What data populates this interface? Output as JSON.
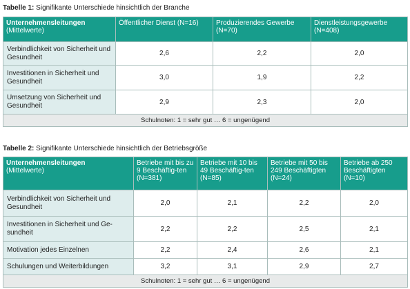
{
  "table1": {
    "caption_prefix": "Tabelle 1:",
    "caption_text": "Signifikante Unterschiede hinsichtlich der Branche",
    "header_first_bold": "Unternehmensleitungen",
    "header_first_sub": "(Mittelwerte)",
    "columns": [
      "Öffentlicher Dienst (N=16)",
      "Produzierendes Gewerbe (N=70)",
      "Dienstleistungsgewerbe (N=408)"
    ],
    "rows": [
      {
        "label": "Verbindlichkeit von Sicherheit und Gesundheit",
        "values": [
          "2,6",
          "2,2",
          "2,0"
        ]
      },
      {
        "label": "Investitionen in Sicherheit und Gesundheit",
        "values": [
          "3,0",
          "1,9",
          "2,2"
        ]
      },
      {
        "label": "Umsetzung von Sicherheit und Gesundheit",
        "values": [
          "2,9",
          "2,3",
          "2,0"
        ]
      }
    ],
    "note": "Schulnoten: 1 = sehr gut … 6 = ungenügend"
  },
  "table2": {
    "caption_prefix": "Tabelle 2:",
    "caption_text": "Signifikante Unterschiede hinsichtlich der Betriebsgröße",
    "header_first_bold": "Unternehmensleitungen",
    "header_first_sub": "(Mittelwerte)",
    "columns": [
      "Betriebe mit bis zu 9 Beschäftig-ten (N=381)",
      "Betriebe mit 10 bis 49 Beschäftig-ten (N=85)",
      "Betriebe mit 50 bis 249 Beschäftigten (N=24)",
      "Betriebe ab 250 Beschäftigten (N=10)"
    ],
    "rows": [
      {
        "label": "Verbindlichkeit von Sicherheit und Gesundheit",
        "values": [
          "2,0",
          "2,1",
          "2,2",
          "2,0"
        ]
      },
      {
        "label": "Investitionen in Sicherheit und Ge-sundheit",
        "values": [
          "2,2",
          "2,2",
          "2,5",
          "2,1"
        ]
      },
      {
        "label": "Motivation jedes Einzelnen",
        "values": [
          "2,2",
          "2,4",
          "2,6",
          "2,1"
        ]
      },
      {
        "label": "Schulungen und Weiterbildungen",
        "values": [
          "3,2",
          "3,1",
          "2,9",
          "2,7"
        ]
      }
    ],
    "note": "Schulnoten: 1 = sehr gut … 6 = ungenügend"
  }
}
